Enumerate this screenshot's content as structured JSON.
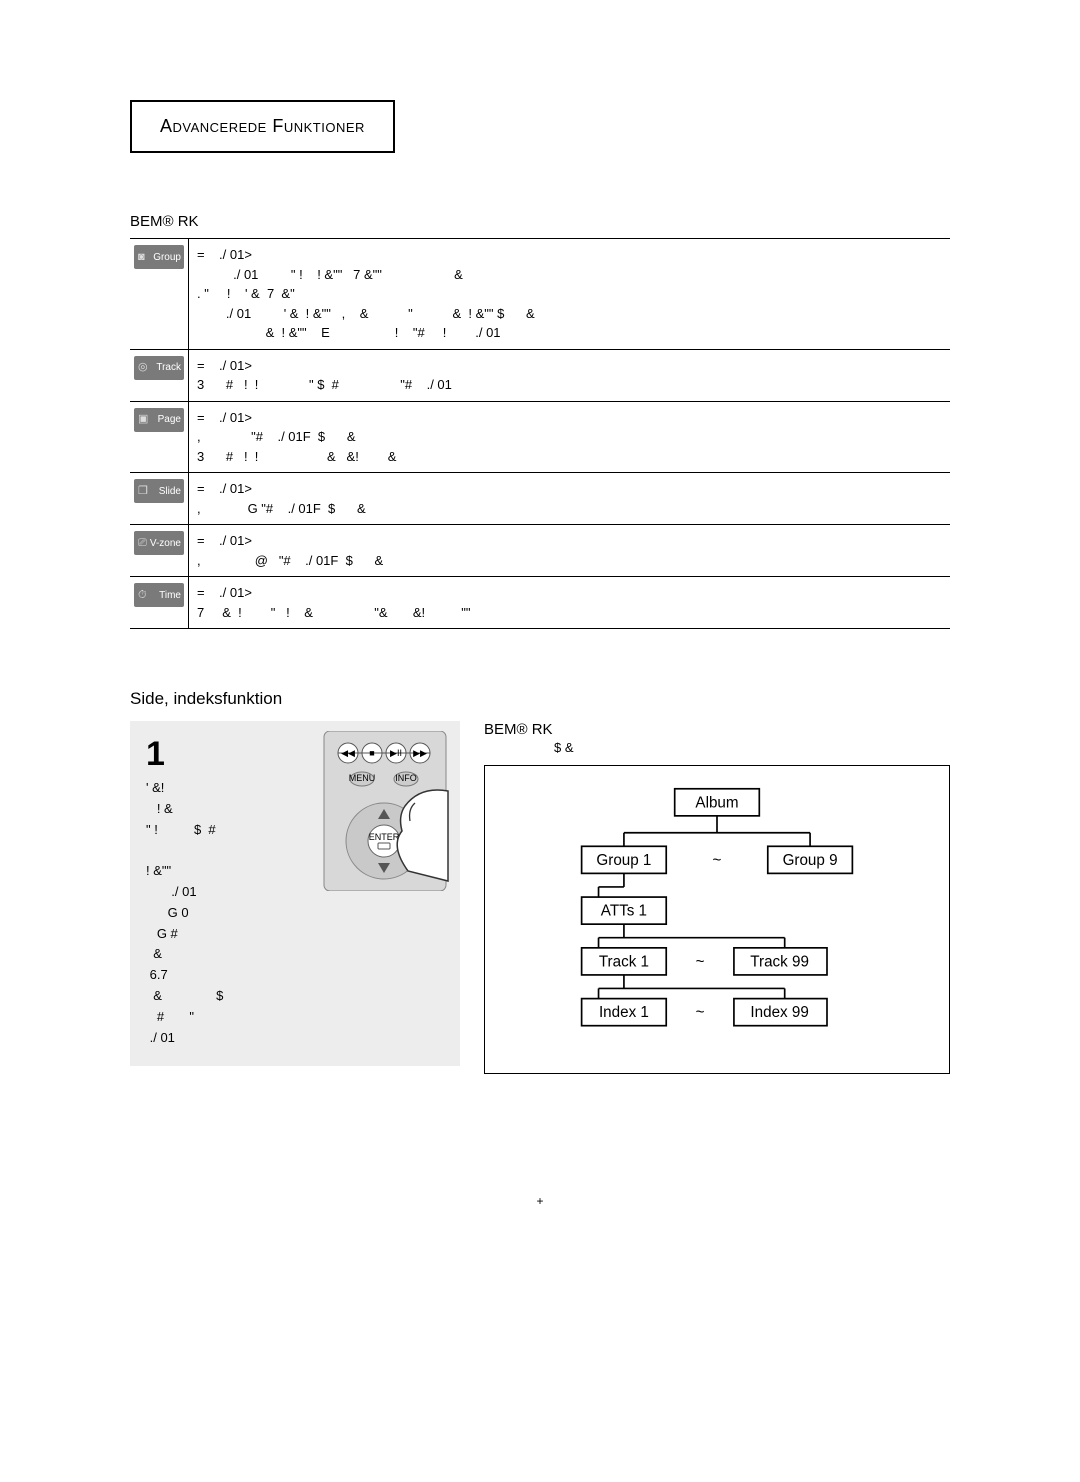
{
  "header": {
    "title": "Advancerede Funktioner"
  },
  "bemrk": "BEM® RK",
  "functions": [
    {
      "icon_label": "Group",
      "glyph": "◙",
      "lines": "=    ./ 01>\n          ./ 01         \" !    ! &\"\"   7 &\"\"                    &\n. \"     !    ' &  7  &\"\n        ./ 01         ' &  ! &\"\"   ,    &           \"           &  ! &\"\" $      &\n                   &  ! &\"\"    E                  !    \"#     !        ./ 01"
    },
    {
      "icon_label": "Track",
      "glyph": "◎",
      "lines": "=    ./ 01>\n3      #   !  !              \" $  #                 \"#    ./ 01"
    },
    {
      "icon_label": "Page",
      "glyph": "▣",
      "lines": "=    ./ 01>\n,              \"#    ./ 01F  $      &\n3      #   !  !                   &   &!        &"
    },
    {
      "icon_label": "Slide",
      "glyph": "❐",
      "lines": "=    ./ 01>\n,             G \"#    ./ 01F  $      &"
    },
    {
      "icon_label": "V-zone",
      "glyph": "⎚",
      "lines": "=    ./ 01>\n,               @   \"#    ./ 01F  $      &"
    },
    {
      "icon_label": "Time",
      "glyph": "⏱",
      "lines": "=    ./ 01>\n7     &  !        \"   !    &                 \"&       &!          \"\""
    }
  ],
  "subheading": "Side, indeksfunktion",
  "step": {
    "number": "1",
    "text": "' &!\n   ! &\n\" !          $  #\n\n! &\"\"\n       ./ 01\n      G 0\n   G #\n  &\n 6.7\n  &               $\n   #       \"\n ./ 01"
  },
  "remote": {
    "enter_label": "ENTER",
    "btn_labels": [
      "◀◀",
      "■",
      "▶II",
      "▶▶"
    ],
    "small_labels": [
      "MENU",
      "INFO"
    ]
  },
  "tree": {
    "header": "BEM® RK",
    "sub": "$        &",
    "nodes": {
      "album": "Album",
      "group1": "Group 1",
      "group9": "Group 9",
      "atts1": "ATTs 1",
      "track1": "Track 1",
      "track99": "Track 99",
      "index1": "Index 1",
      "index99": "Index 99",
      "tilde": "~"
    }
  },
  "page_number": "+"
}
